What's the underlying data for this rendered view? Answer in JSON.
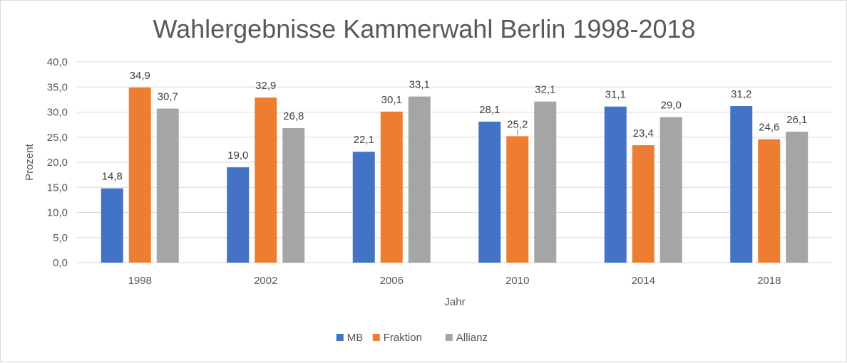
{
  "chart_data": {
    "type": "bar",
    "title": "Wahlergebnisse Kammerwahl Berlin 1998-2018",
    "xlabel": "Jahr",
    "ylabel": "Prozent",
    "categories": [
      "1998",
      "2002",
      "2006",
      "2010",
      "2014",
      "2018"
    ],
    "series": [
      {
        "name": "MB",
        "color": "#4472C4",
        "values": [
          14.8,
          19.0,
          22.1,
          28.1,
          31.1,
          31.2
        ]
      },
      {
        "name": "Fraktion",
        "color": "#ED7D31",
        "values": [
          34.9,
          32.9,
          30.1,
          25.2,
          23.4,
          24.6
        ]
      },
      {
        "name": "Allianz",
        "color": "#A5A5A5",
        "values": [
          30.7,
          26.8,
          33.1,
          32.1,
          29.0,
          26.1
        ]
      }
    ],
    "ylim": [
      0,
      40
    ],
    "yticks": [
      "0,0",
      "5,0",
      "10,0",
      "15,0",
      "20,0",
      "25,0",
      "30,0",
      "35,0",
      "40,0"
    ],
    "data_labels": [
      [
        "14,8",
        "19,0",
        "22,1",
        "28,1",
        "31,1",
        "31,2"
      ],
      [
        "34,9",
        "32,9",
        "30,1",
        "25,2",
        "23,4",
        "24,6"
      ],
      [
        "30,7",
        "26,8",
        "33,1",
        "32,1",
        "29,0",
        "26,1"
      ]
    ],
    "grid": true,
    "legend_position": "bottom"
  }
}
